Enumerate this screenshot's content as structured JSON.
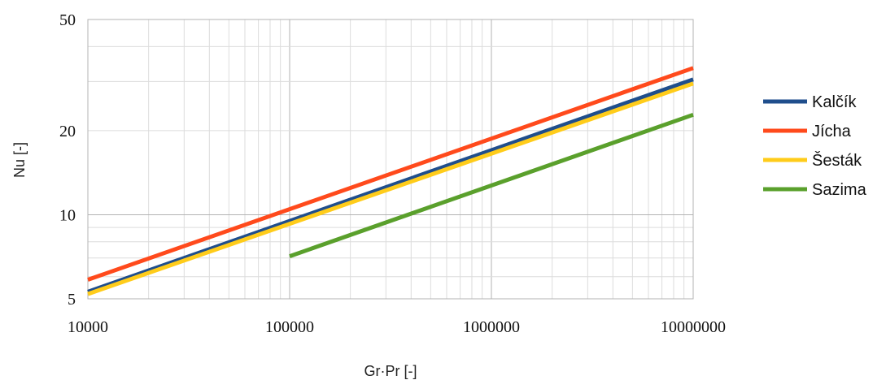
{
  "chart_data": {
    "type": "line",
    "title": "",
    "xlabel": "Gr·Pr [-]",
    "ylabel": "Nu [-]",
    "x_scale": "log",
    "y_scale": "log",
    "xlim": [
      10000,
      10000000
    ],
    "ylim": [
      5,
      50
    ],
    "grid": true,
    "legend": "right",
    "x_ticks": [
      "10000",
      "100000",
      "1000000",
      "10000000"
    ],
    "y_ticks": [
      "5",
      "10",
      "20",
      "50"
    ],
    "series": [
      {
        "name": "Kalčík",
        "color": "#1f4e8c",
        "x": [
          10000,
          10000000
        ],
        "y": [
          5.3,
          30.5
        ]
      },
      {
        "name": "Jícha",
        "color": "#ff4a1c",
        "x": [
          10000,
          10000000
        ],
        "y": [
          5.85,
          33.5
        ]
      },
      {
        "name": "Šesták",
        "color": "#ffcc1a",
        "x": [
          10000,
          10000000
        ],
        "y": [
          5.2,
          29.5
        ]
      },
      {
        "name": "Sazima",
        "color": "#5aa02c",
        "x": [
          100000,
          10000000
        ],
        "y": [
          7.1,
          22.8
        ]
      }
    ]
  }
}
